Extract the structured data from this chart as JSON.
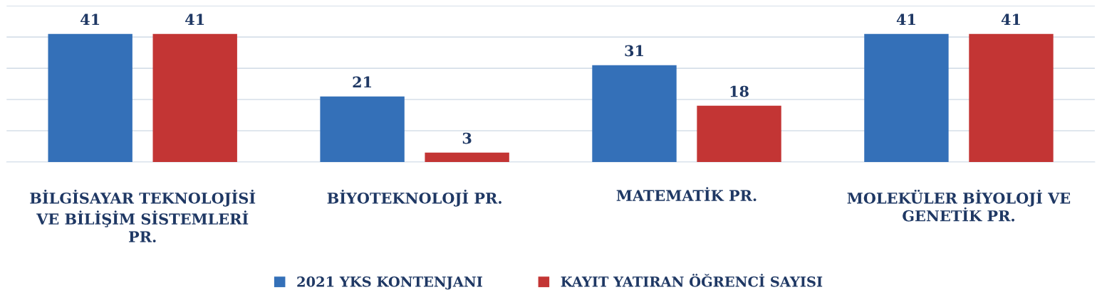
{
  "chart_data": {
    "type": "bar",
    "categories": [
      "BİLGİSAYAR TEKNOLOJİSİ VE BİLİŞİM SİSTEMLERİ PR.",
      "BİYOTEKNOLOJİ PR.",
      "MATEMATİK PR.",
      "MOLEKÜLER BİYOLOJİ VE GENETİK PR."
    ],
    "series": [
      {
        "name": "2021 YKS KONTENJANI",
        "color": "#3470b8",
        "values": [
          41,
          21,
          31,
          41
        ]
      },
      {
        "name": "KAYIT YATIRAN ÖĞRENCİ SAYISI",
        "color": "#c33534",
        "values": [
          41,
          3,
          18,
          41
        ]
      }
    ],
    "ylim": [
      0,
      50
    ],
    "yticks": [
      {
        "value": 0,
        "label": null
      },
      {
        "value": 10,
        "label": null
      },
      {
        "value": 20,
        "label": null
      },
      {
        "value": 30,
        "label": null
      },
      {
        "value": 40,
        "label": null
      },
      {
        "value": 50,
        "label": null
      }
    ],
    "grid": "y",
    "legend": "bottom",
    "data_labels": true,
    "tick_labels": "x"
  }
}
